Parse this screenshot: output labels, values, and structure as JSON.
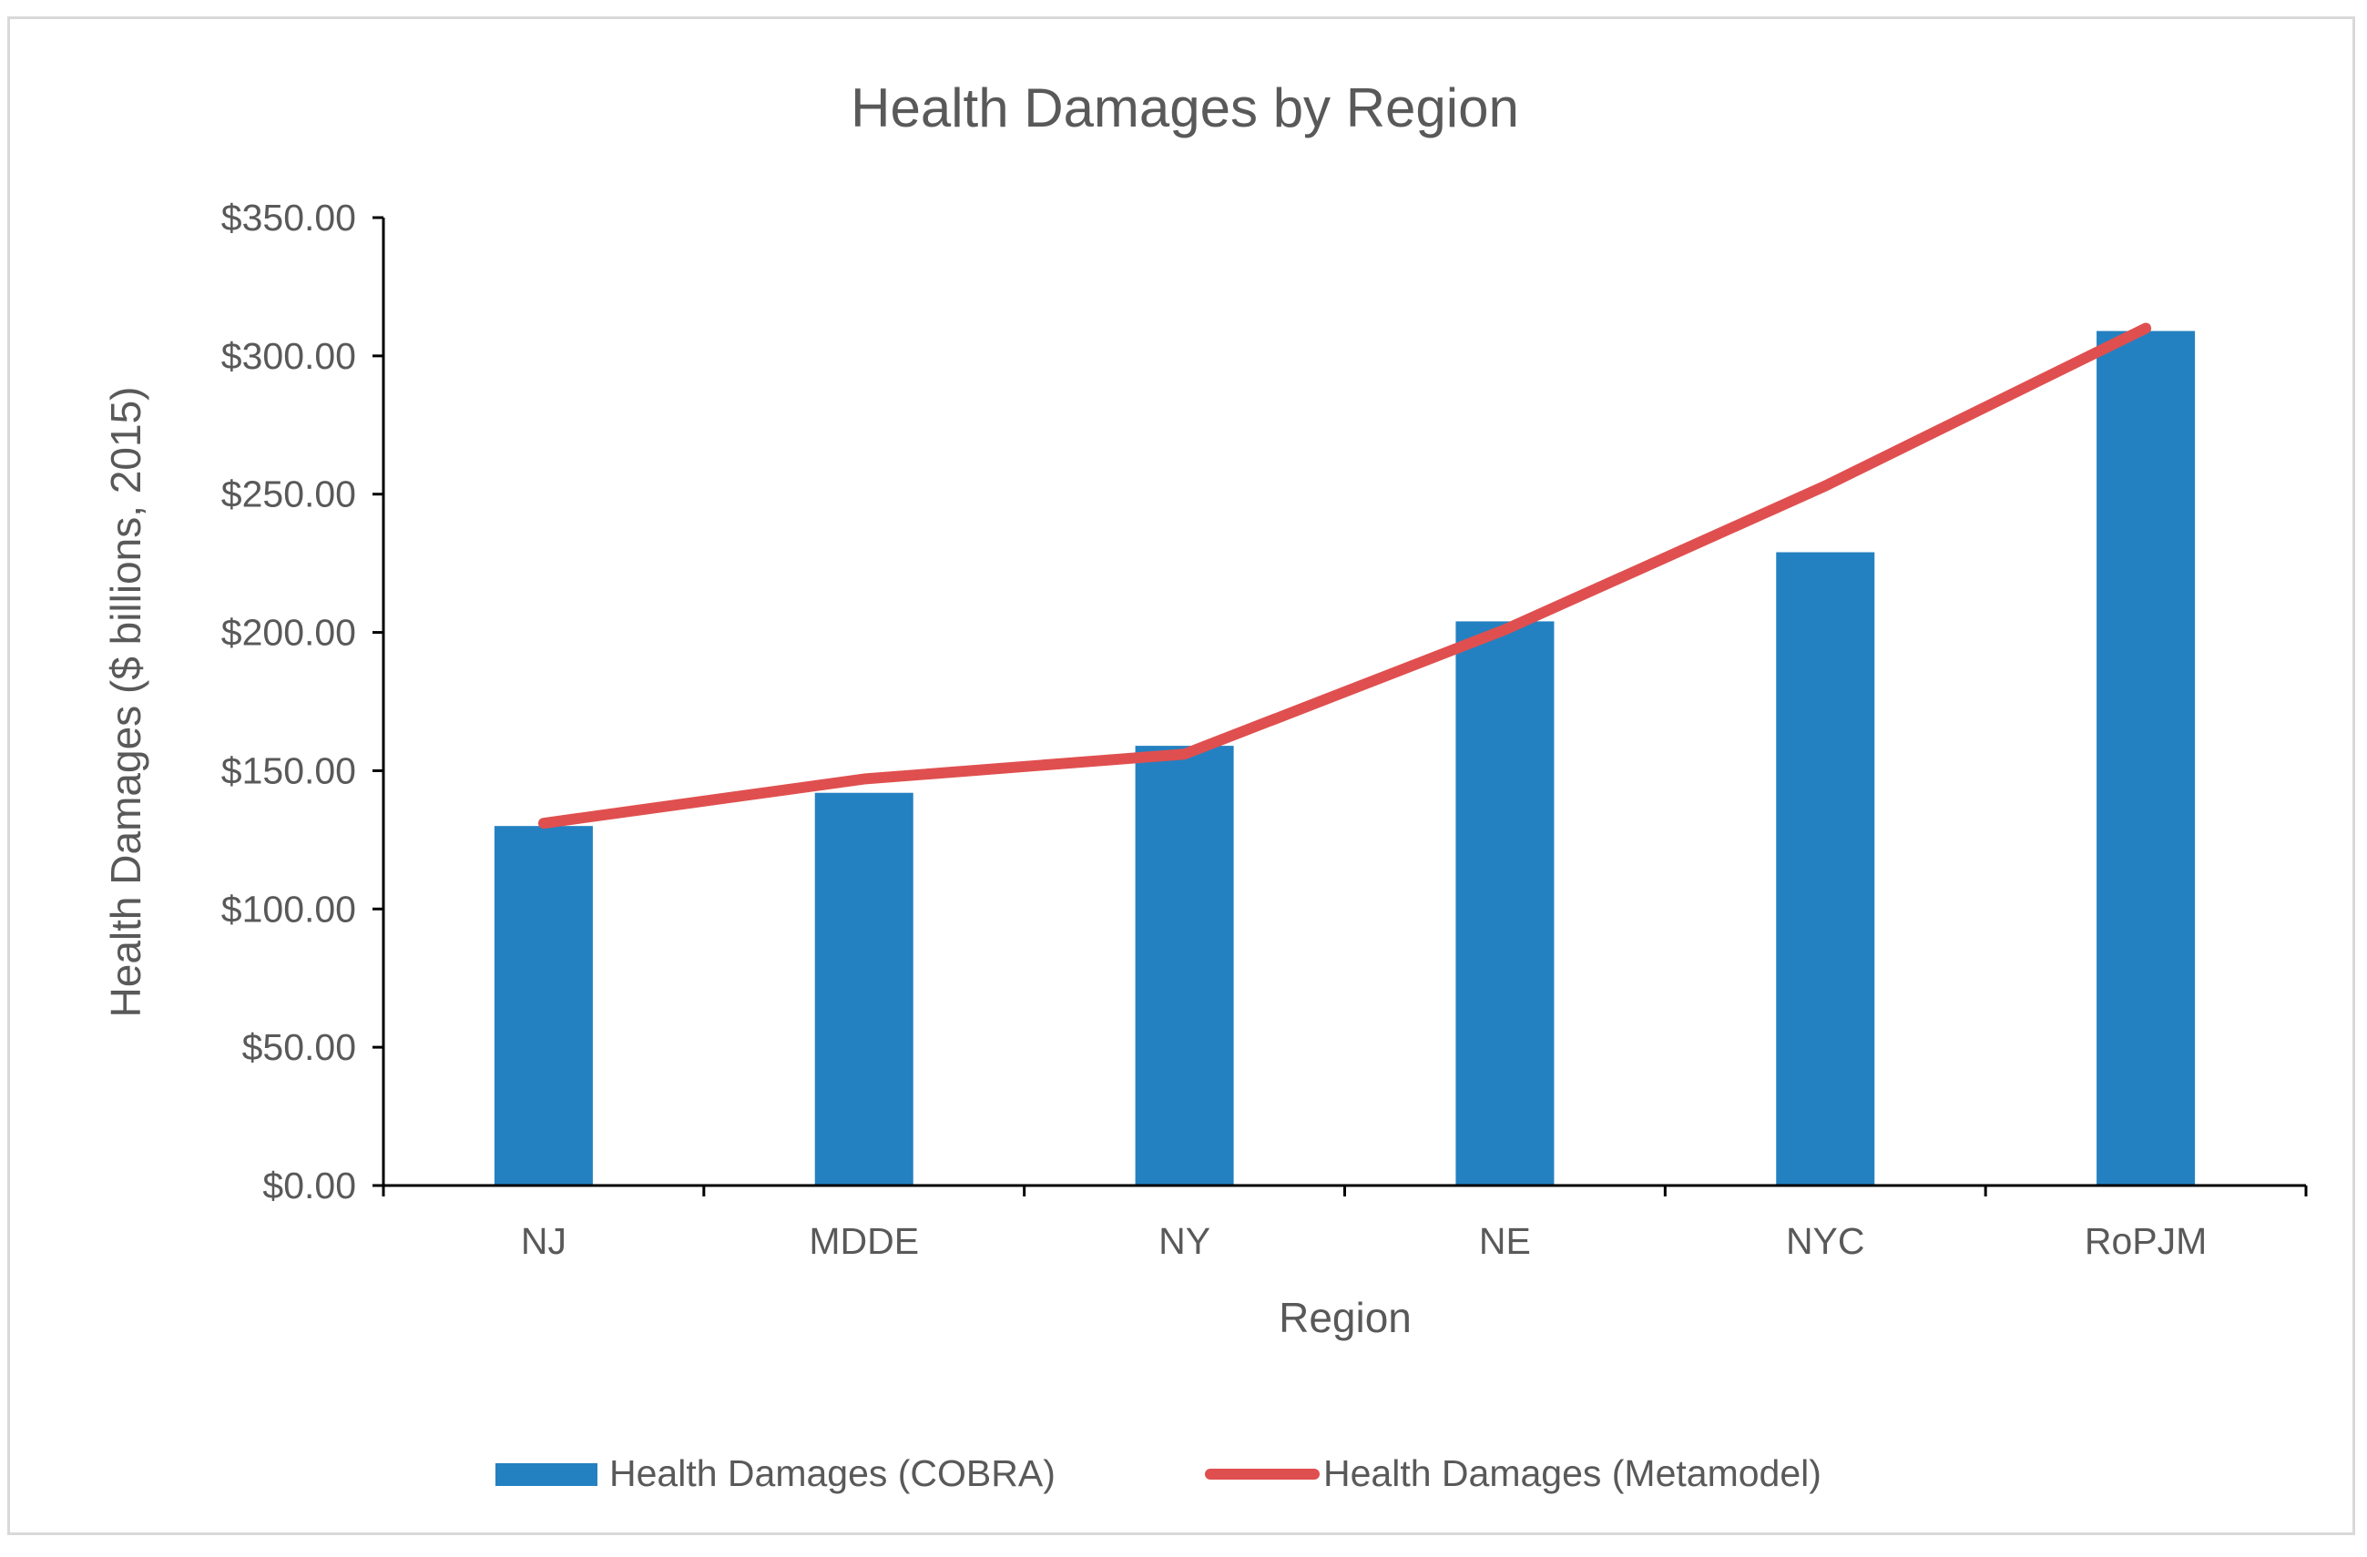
{
  "chart_data": {
    "type": "bar",
    "title": "Health Damages by Region",
    "xlabel": "Region",
    "ylabel": "Health Damages ($ billions, 2015)",
    "categories": [
      "NJ",
      "MDDE",
      "NY",
      "NE",
      "NYC",
      "RoPJM"
    ],
    "ylim": [
      0,
      350
    ],
    "y_ticks": [
      0,
      50,
      100,
      150,
      200,
      250,
      300,
      350
    ],
    "y_tick_labels": [
      "$0.00",
      "$50.00",
      "$100.00",
      "$150.00",
      "$200.00",
      "$250.00",
      "$300.00",
      "$350.00"
    ],
    "grid": false,
    "legend_position": "bottom",
    "series": [
      {
        "name": "Health Damages (COBRA)",
        "type": "bar",
        "color": "#2481c1",
        "values": [
          130,
          142,
          159,
          204,
          229,
          309
        ]
      },
      {
        "name": "Health Damages (Metamodel)",
        "type": "line",
        "color": "#e04f4f",
        "values": [
          131,
          147,
          156,
          201,
          253,
          310
        ]
      }
    ]
  }
}
